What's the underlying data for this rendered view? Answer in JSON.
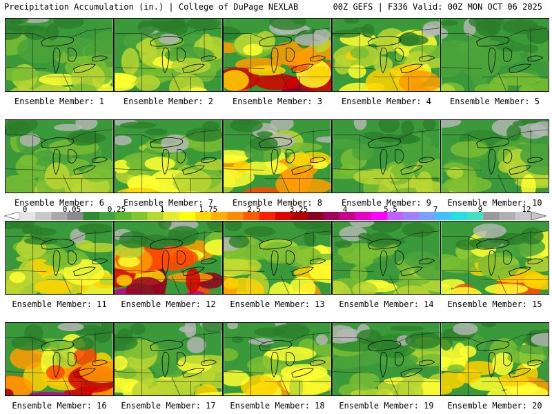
{
  "header": {
    "left": "Precipitation Accumulation (in.) | College of DuPage NEXLAB",
    "right": "00Z GEFS | F336 Valid: 00Z MON OCT 06 2025"
  },
  "panels": [
    {
      "label": "Ensemble Member: 1",
      "intensity": 0.4
    },
    {
      "label": "Ensemble Member: 2",
      "intensity": 0.45
    },
    {
      "label": "Ensemble Member: 3",
      "intensity": 0.85
    },
    {
      "label": "Ensemble Member: 4",
      "intensity": 0.6
    },
    {
      "label": "Ensemble Member: 5",
      "intensity": 0.25
    },
    {
      "label": "Ensemble Member: 6",
      "intensity": 0.35
    },
    {
      "label": "Ensemble Member: 7",
      "intensity": 0.5
    },
    {
      "label": "Ensemble Member: 8",
      "intensity": 0.65
    },
    {
      "label": "Ensemble Member: 9",
      "intensity": 0.35
    },
    {
      "label": "Ensemble Member: 10",
      "intensity": 0.4
    },
    {
      "label": "Ensemble Member: 11",
      "intensity": 0.55
    },
    {
      "label": "Ensemble Member: 12",
      "intensity": 0.95
    },
    {
      "label": "Ensemble Member: 13",
      "intensity": 0.55
    },
    {
      "label": "Ensemble Member: 14",
      "intensity": 0.4
    },
    {
      "label": "Ensemble Member: 15",
      "intensity": 0.65
    },
    {
      "label": "Ensemble Member: 16",
      "intensity": 0.9
    },
    {
      "label": "Ensemble Member: 17",
      "intensity": 0.5
    },
    {
      "label": "Ensemble Member: 18",
      "intensity": 0.55
    },
    {
      "label": "Ensemble Member: 19",
      "intensity": 0.4
    },
    {
      "label": "Ensemble Member: 20",
      "intensity": 0.6
    }
  ],
  "colorbar": {
    "ticks": [
      "0",
      "0.05",
      "0.25",
      "1",
      "1.75",
      "2.5",
      "3.25",
      "4",
      "5.5",
      "7",
      "9",
      "12"
    ],
    "colors": [
      "#e4e4e4",
      "#c8c8c8",
      "#a8a8a8",
      "#8a8a8a",
      "#2d8a2d",
      "#3fa33f",
      "#5cb82e",
      "#7fc72a",
      "#b5d92a",
      "#e6ec2a",
      "#ffff00",
      "#ffd700",
      "#ffb000",
      "#ff8c00",
      "#ff5a00",
      "#ff2000",
      "#e00000",
      "#b40000",
      "#8c0020",
      "#a0005a",
      "#c8008c",
      "#e600c8",
      "#ff00ff",
      "#c060ff",
      "#a080ff",
      "#7aa0ff",
      "#40c0ff",
      "#20e0e0",
      "#40e0c0",
      "#9a9a9a",
      "#b0b0b0",
      "#c8c8c8"
    ]
  }
}
